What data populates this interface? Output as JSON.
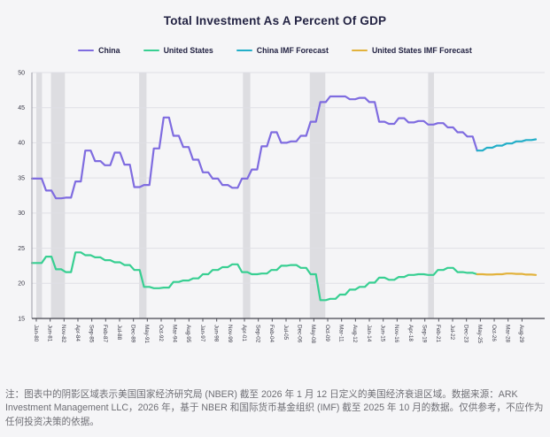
{
  "title": "Total Investment As A Percent Of GDP",
  "legend": {
    "items": [
      {
        "label": "China",
        "color": "#7f6ce0"
      },
      {
        "label": "United States",
        "color": "#38cf92"
      },
      {
        "label": "China IMF Forecast",
        "color": "#23aec8"
      },
      {
        "label": "United States IMF Forecast",
        "color": "#e2b23c"
      }
    ]
  },
  "note": "注：图表中的阴影区域表示美国国家经济研究局 (NBER) 截至 2026 年 1 月 12 日定义的美国经济衰退区域。数据来源：ARK Investment Management LLC，2026 年，基于 NBER 和国际货币基金组织 (IMF) 截至 2025 年 10 月的数据。仅供参考，不应作为任何投资决策的依据。",
  "chart_data": {
    "type": "line",
    "title": "Total Investment As A Percent Of GDP",
    "xlabel": "",
    "ylabel": "",
    "ylim": [
      15,
      50
    ],
    "yticks": [
      15,
      20,
      25,
      30,
      35,
      40,
      45,
      50
    ],
    "x_domain": [
      1979.55,
      2031.9
    ],
    "xtick_interval_months": 17,
    "xticklabels": [
      "Jan-80",
      "Jun-81",
      "Nov-82",
      "Apr-84",
      "Sep-85",
      "Feb-87",
      "Jul-88",
      "Dec-89",
      "May-91",
      "Oct-92",
      "Mar-94",
      "Aug-95",
      "Jan-97",
      "Jun-98",
      "Nov-99",
      "Apr-01",
      "Sep-02",
      "Feb-04",
      "Jul-05",
      "Dec-06",
      "May-08",
      "Oct-09",
      "Mar-11",
      "Aug-12",
      "Jan-14",
      "Jun-15",
      "Nov-16",
      "Apr-18",
      "Sep-19",
      "Feb-21",
      "Jul-22",
      "Dec-23",
      "May-25",
      "Oct-26",
      "Mar-28",
      "Aug-29"
    ],
    "grid": "horizontal",
    "legend_position": "top-center",
    "recession_bands_years": [
      [
        1980.0,
        1980.58
      ],
      [
        1981.5,
        1982.92
      ],
      [
        1990.5,
        1991.25
      ],
      [
        2001.1,
        2001.85
      ],
      [
        2007.92,
        2009.5
      ],
      [
        2020.0,
        2020.6
      ]
    ],
    "recession_band_color": "rgba(135,135,148,0.22)",
    "series": [
      {
        "name": "China",
        "color": "#7f6ce0",
        "start_year": 1980,
        "values": [
          34.9,
          33.2,
          32.1,
          32.2,
          34.5,
          38.9,
          37.4,
          36.8,
          38.6,
          36.9,
          33.7,
          34.0,
          39.2,
          43.6,
          41.0,
          39.4,
          37.6,
          35.8,
          34.9,
          34.0,
          33.6,
          34.9,
          36.2,
          39.5,
          41.5,
          40.0,
          40.2,
          41.0,
          43.0,
          45.8,
          46.6,
          46.6,
          46.2,
          46.4,
          45.8,
          43.0,
          42.7,
          43.5,
          42.9,
          43.1,
          42.6,
          42.8,
          42.2,
          41.5,
          40.9,
          38.9
        ]
      },
      {
        "name": "United States",
        "color": "#38cf92",
        "start_year": 1980,
        "values": [
          22.9,
          23.8,
          22.0,
          21.6,
          24.4,
          24.0,
          23.7,
          23.3,
          23.0,
          22.6,
          21.9,
          19.5,
          19.3,
          19.4,
          20.2,
          20.4,
          20.7,
          21.3,
          21.9,
          22.3,
          22.7,
          21.6,
          21.3,
          21.4,
          21.9,
          22.5,
          22.6,
          22.2,
          21.3,
          17.6,
          17.8,
          18.4,
          19.1,
          19.5,
          20.1,
          20.8,
          20.5,
          20.9,
          21.2,
          21.3,
          21.2,
          21.9,
          22.2,
          21.6,
          21.5,
          21.3
        ]
      },
      {
        "name": "China IMF Forecast",
        "color": "#23aec8",
        "start_year": 2025,
        "values": [
          38.9,
          39.3,
          39.6,
          39.9,
          40.2,
          40.4,
          40.5
        ]
      },
      {
        "name": "United States IMF Forecast",
        "color": "#e2b23c",
        "start_year": 2025,
        "values": [
          21.3,
          21.25,
          21.3,
          21.4,
          21.35,
          21.25,
          21.2
        ]
      }
    ]
  }
}
